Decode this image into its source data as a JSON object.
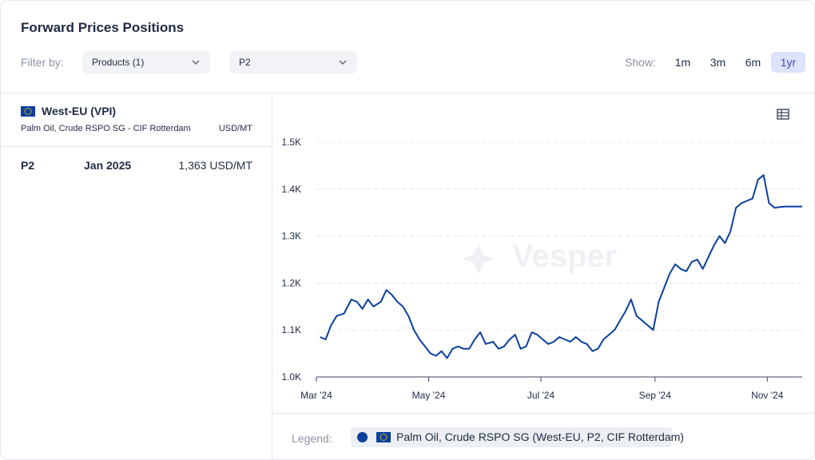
{
  "header": {
    "title": "Forward Prices Positions",
    "filter_label": "Filter by:",
    "filters": [
      {
        "value": "Products (1)"
      },
      {
        "value": "P2"
      }
    ],
    "show_label": "Show:",
    "ranges": [
      "1m",
      "3m",
      "6m",
      "1yr"
    ],
    "active_range": "1yr"
  },
  "left_panel": {
    "region": "West-EU (VPI)",
    "product": "Palm Oil, Crude RSPO SG - CIF Rotterdam",
    "unit": "USD/MT",
    "rows": [
      {
        "position": "P2",
        "month": "Jan 2025",
        "price": "1,363 USD/MT"
      }
    ]
  },
  "legend": {
    "label": "Legend:",
    "series_name": "Palm Oil, Crude RSPO SG (West-EU, P2, CIF Rotterdam)"
  },
  "watermark": "Vesper",
  "colors": {
    "series": "#0b3fa0",
    "flag": "#0b3fa0",
    "accent_bg": "#dde3fb"
  },
  "chart_data": {
    "type": "line",
    "title": "",
    "xlabel": "",
    "ylabel": "",
    "ylim": [
      1000,
      1500
    ],
    "y_ticks": [
      1000,
      1100,
      1200,
      1300,
      1400,
      1500
    ],
    "y_tick_labels": [
      "1.0K",
      "1.1K",
      "1.2K",
      "1.3K",
      "1.4K",
      "1.5K"
    ],
    "x_ticks": [
      "2024-03-01",
      "2024-05-01",
      "2024-07-01",
      "2024-09-01",
      "2024-11-01"
    ],
    "x_tick_labels": [
      "Mar '24",
      "May '24",
      "Jul '24",
      "Sep '24",
      "Nov '24"
    ],
    "xlim": [
      "2024-03-01",
      "2024-11-20"
    ],
    "grid": true,
    "series": [
      {
        "name": "Palm Oil, Crude RSPO SG (West-EU, P2, CIF Rotterdam)",
        "x": [
          "2024-03-03",
          "2024-03-06",
          "2024-03-09",
          "2024-03-12",
          "2024-03-16",
          "2024-03-20",
          "2024-03-23",
          "2024-03-26",
          "2024-03-29",
          "2024-04-01",
          "2024-04-05",
          "2024-04-08",
          "2024-04-11",
          "2024-04-14",
          "2024-04-17",
          "2024-04-20",
          "2024-04-23",
          "2024-04-26",
          "2024-04-29",
          "2024-05-02",
          "2024-05-05",
          "2024-05-08",
          "2024-05-11",
          "2024-05-14",
          "2024-05-17",
          "2024-05-20",
          "2024-05-23",
          "2024-05-26",
          "2024-05-29",
          "2024-06-01",
          "2024-06-05",
          "2024-06-08",
          "2024-06-11",
          "2024-06-14",
          "2024-06-17",
          "2024-06-20",
          "2024-06-23",
          "2024-06-26",
          "2024-06-29",
          "2024-07-02",
          "2024-07-05",
          "2024-07-08",
          "2024-07-11",
          "2024-07-14",
          "2024-07-17",
          "2024-07-20",
          "2024-07-23",
          "2024-07-26",
          "2024-07-29",
          "2024-08-01",
          "2024-08-04",
          "2024-08-07",
          "2024-08-10",
          "2024-08-13",
          "2024-08-16",
          "2024-08-19",
          "2024-08-22",
          "2024-08-25",
          "2024-08-28",
          "2024-08-31",
          "2024-09-03",
          "2024-09-06",
          "2024-09-09",
          "2024-09-12",
          "2024-09-15",
          "2024-09-18",
          "2024-09-21",
          "2024-09-24",
          "2024-09-27",
          "2024-09-30",
          "2024-10-03",
          "2024-10-06",
          "2024-10-09",
          "2024-10-12",
          "2024-10-15",
          "2024-10-18",
          "2024-10-21",
          "2024-10-24",
          "2024-10-27",
          "2024-10-30",
          "2024-11-02",
          "2024-11-05",
          "2024-11-08",
          "2024-11-11",
          "2024-11-14",
          "2024-11-17",
          "2024-11-20"
        ],
        "y": [
          1085,
          1080,
          1110,
          1130,
          1135,
          1165,
          1160,
          1145,
          1165,
          1150,
          1160,
          1185,
          1175,
          1160,
          1150,
          1130,
          1100,
          1080,
          1065,
          1050,
          1045,
          1055,
          1040,
          1060,
          1065,
          1060,
          1060,
          1080,
          1095,
          1070,
          1075,
          1060,
          1065,
          1080,
          1090,
          1060,
          1065,
          1095,
          1090,
          1080,
          1070,
          1075,
          1085,
          1080,
          1075,
          1085,
          1075,
          1070,
          1055,
          1060,
          1080,
          1090,
          1100,
          1120,
          1140,
          1165,
          1130,
          1120,
          1110,
          1100,
          1160,
          1190,
          1220,
          1240,
          1230,
          1225,
          1245,
          1250,
          1230,
          1255,
          1280,
          1300,
          1285,
          1310,
          1360,
          1370,
          1375,
          1380,
          1420,
          1430,
          1370,
          1360,
          1362,
          1363,
          1363,
          1363,
          1363
        ]
      }
    ]
  }
}
